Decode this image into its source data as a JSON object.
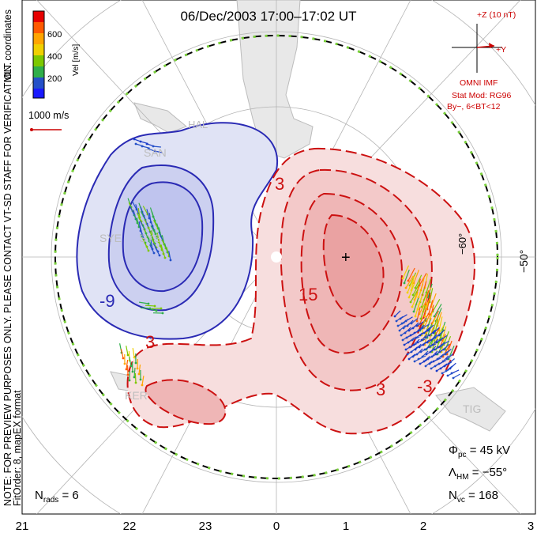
{
  "title": "06/Dec/2003 17:00–17:02 UT",
  "side_note": "NOTE: FOR PREVIEW PURPOSES ONLY. PLEASE CONTACT VT-SD STAFF FOR VERIFICATION.",
  "side_note2": "FitOrder: 8, mapEX format",
  "coords_label": "MLT coordinates",
  "colorbar": {
    "label": "Vel [m/s]",
    "ticks": [
      "600",
      "400",
      "200"
    ],
    "colors": [
      "#e60000",
      "#ff5a00",
      "#ffa500",
      "#f0d000",
      "#7cc800",
      "#2fae4a",
      "#2450c8",
      "#1a1aff"
    ]
  },
  "vector_scale_label": "1000 m/s",
  "imf": {
    "top_label": "+Z (10 nT)",
    "y_label": "+Y",
    "source": "OMNI IMF",
    "model": "Stat Mod: RG96",
    "condition": "By−, 6<BT<12"
  },
  "stats": {
    "phi_pc": "45 kV",
    "lambda_hm": "−55°",
    "n_vc": "168",
    "n_rads": "6"
  },
  "lat_labels": {
    "right": "−50°",
    "inner": "−60°"
  },
  "mlt_ticks": [
    "21",
    "22",
    "23",
    "0",
    "1",
    "2",
    "3"
  ],
  "stations": [
    "HAL",
    "SAN",
    "SYE",
    "SYS",
    "KER",
    "TIG"
  ],
  "contour_labels": [
    "-9",
    "3",
    "15",
    "3",
    "3",
    "-3"
  ],
  "chart_data": {
    "type": "heatmap",
    "title": "06/Dec/2003 17:00–17:02 UT",
    "x_axis": {
      "label": "",
      "ticks": [
        "21",
        "22",
        "23",
        "0",
        "1",
        "2",
        "3"
      ]
    },
    "velocity_scale": {
      "unit": "m/s",
      "range": [
        0,
        700
      ],
      "ticks": [
        200,
        400,
        600
      ]
    },
    "potential_contours_kV": [
      -9,
      -3,
      3,
      9,
      15
    ],
    "stats": {
      "phi_pc_kV": 45,
      "lambda_hm_deg": -55,
      "n_vc": 168,
      "n_rads": 6
    }
  }
}
